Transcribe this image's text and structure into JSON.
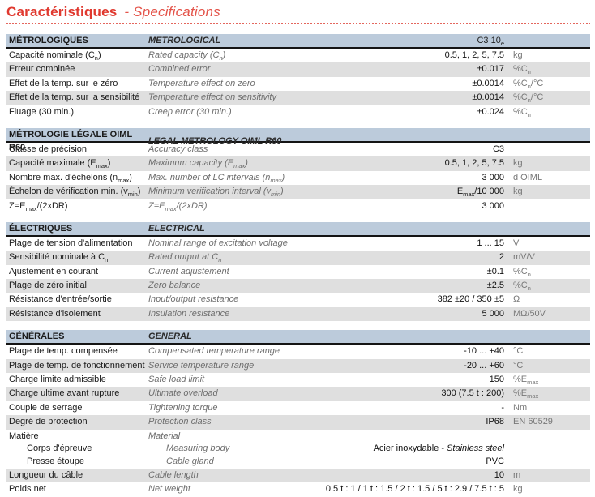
{
  "page": {
    "title_fr": "Caractéristiques",
    "title_en": "- Specifications"
  },
  "colors": {
    "accent_red": "#e0392f",
    "section_band": "#bccbdb",
    "row_shade": "#dfdfdf"
  },
  "table": {
    "sections": [
      {
        "header_fr": "MÉTROLOGIQUES",
        "header_en": "METROLOGICAL",
        "header_col": "C3 10<sub>e</sub>",
        "rows": [
          {
            "fr": "Capacité nominale (C<sub>n</sub>)",
            "en": "Rated capacity (C<sub>n</sub>)",
            "value": "0.5, 1, 2, 5, 7.5",
            "unit": "kg"
          },
          {
            "fr": "Erreur combinée",
            "en": "Combined error",
            "value": "±0.017",
            "unit": "%C<sub>n</sub>"
          },
          {
            "fr": "Effet de la temp. sur le zéro",
            "en": "Temperature effect on zero",
            "value": "±0.0014",
            "unit": "%C<sub>n</sub>/°C"
          },
          {
            "fr": "Effet de la temp. sur la sensibilité",
            "en": "Temperature effect on sensitivity",
            "value": "±0.0014",
            "unit": "%C<sub>n</sub>/°C"
          },
          {
            "fr": "Fluage (30 min.)",
            "en": "Creep error (30 min.)",
            "value": "±0.024",
            "unit": "%C<sub>n</sub>"
          }
        ]
      },
      {
        "header_fr": "MÉTROLOGIE LÉGALE OIML R60",
        "header_en": "LEGAL METROLOGY OIML R60",
        "header_col": "",
        "rows": [
          {
            "fr": "Classe de précision",
            "en": "Accuracy class",
            "value": "C3",
            "unit": ""
          },
          {
            "fr": "Capacité maximale (E<sub>max</sub>)",
            "en": "Maximum capacity (E<sub>max</sub>)",
            "value": "0.5, 1, 2, 5, 7.5",
            "unit": "kg"
          },
          {
            "fr": "Nombre max. d'échelons (n<sub>max</sub>)",
            "en": "Max. number of LC intervals (n<sub>max</sub>)",
            "value": "3 000",
            "unit": "d OIML"
          },
          {
            "fr": "Échelon de vérification min. (v<sub>min</sub>)",
            "en": "Minimum verification interval (v<sub>min</sub>)",
            "value": "E<sub>max</sub>/10 000",
            "unit": "kg"
          },
          {
            "fr": "Z=E<sub>max</sub>/(2xDR)",
            "en": "Z=E<sub>max</sub>/(2xDR)",
            "value": "3 000",
            "unit": ""
          }
        ]
      },
      {
        "header_fr": "ÉLECTRIQUES",
        "header_en": "ELECTRICAL",
        "header_col": "",
        "rows": [
          {
            "fr": "Plage de tension d'alimentation",
            "en": "Nominal range of excitation voltage",
            "value": "1 ... 15",
            "unit": "V"
          },
          {
            "fr": "Sensibilité nominale à C<sub>n</sub>",
            "en": "Rated output at C<sub>n</sub>",
            "value": "2",
            "unit": "mV/V"
          },
          {
            "fr": "Ajustement en courant",
            "en": "Current adjustement",
            "value": "±0.1",
            "unit": "%C<sub>n</sub>"
          },
          {
            "fr": "Plage de zéro initial",
            "en": "Zero balance",
            "value": "±2.5",
            "unit": "%C<sub>n</sub>"
          },
          {
            "fr": "Résistance d'entrée/sortie",
            "en": "Input/output resistance",
            "value": "382 ±20 / 350 ±5",
            "unit": "Ω"
          },
          {
            "fr": "Résistance d'isolement",
            "en": "Insulation resistance",
            "value": "5 000",
            "unit": "MΩ/50V"
          }
        ]
      },
      {
        "header_fr": "GÉNÉRALES",
        "header_en": "GENERAL",
        "header_col": "",
        "rows": [
          {
            "fr": "Plage de temp. compensée",
            "en": "Compensated temperature range",
            "value": "-10 ... +40",
            "unit": "°C"
          },
          {
            "fr": "Plage de temp. de fonctionnement",
            "en": "Service temperature range",
            "value": "-20 ... +60",
            "unit": "°C"
          },
          {
            "fr": "Charge limite admissible",
            "en": "Safe load limit",
            "value": "150",
            "unit": "%E<sub>max</sub>"
          },
          {
            "fr": "Charge ultime avant rupture",
            "en": "Ultimate overload",
            "value": "300 (7.5 t : 200)",
            "unit": "%E<sub>max</sub>"
          },
          {
            "fr": "Couple de serrage",
            "en": "Tightening torque",
            "value": "-",
            "unit": "Nm"
          },
          {
            "fr": "Degré de protection",
            "en": "Protection class",
            "value": "IP68",
            "unit": "EN 60529"
          },
          {
            "fr": "Matière",
            "en": "Material",
            "value": "",
            "unit": "",
            "sub": [
              {
                "fr": "Corps d'épreuve",
                "en": "Measuring body",
                "value": "Acier inoxydable - <i>Stainless steel</i>"
              },
              {
                "fr": "Presse étoupe",
                "en": "Cable gland",
                "value": "PVC"
              }
            ]
          },
          {
            "fr": "Longueur du câble",
            "en": "Cable length",
            "value": "10",
            "unit": "m"
          },
          {
            "fr": "Poids net",
            "en": "Net weight",
            "value": "0.5 t : 1 / 1 t : 1.5 / 2 t : 1.5 / 5 t : 2.9 / 7.5 t : 5",
            "unit": "kg"
          }
        ]
      }
    ]
  }
}
